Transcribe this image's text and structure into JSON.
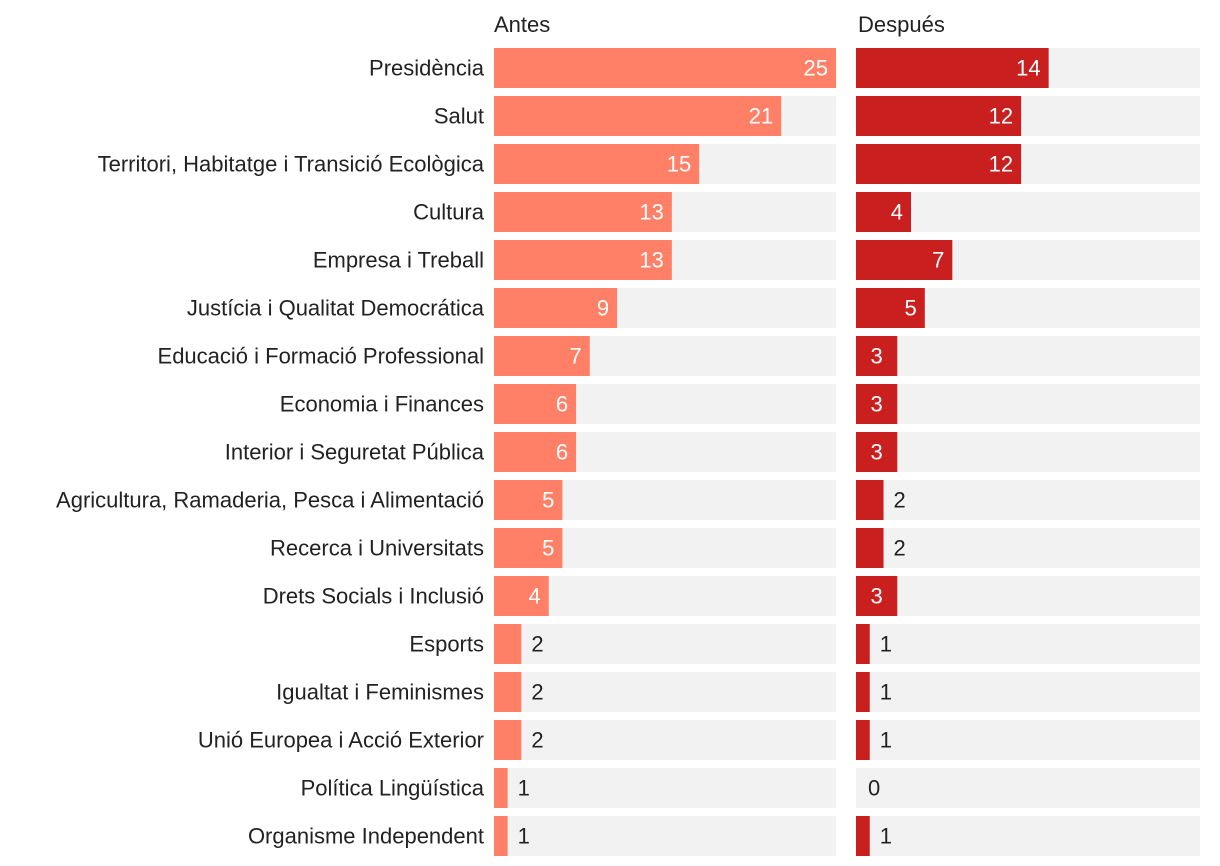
{
  "chart_data": {
    "type": "bar",
    "orientation": "horizontal",
    "categories": [
      "Presidència",
      "Salut",
      "Territori, Habitatge i Transició Ecològica",
      "Cultura",
      "Empresa i Treball",
      "Justícia i Qualitat Democrática",
      "Educació i Formació Professional",
      "Economia i Finances",
      "Interior i Seguretat Pública",
      "Agricultura, Ramaderia, Pesca i Alimentació",
      "Recerca i Universitats",
      "Drets Socials i Inclusió",
      "Esports",
      "Igualtat i Feminismes",
      "Unió Europea i Acció Exterior",
      "Política Lingüística",
      "Organisme Independent"
    ],
    "series": [
      {
        "name": "Antes",
        "color": "#ff8066",
        "values": [
          25,
          21,
          15,
          13,
          13,
          9,
          7,
          6,
          6,
          5,
          5,
          4,
          2,
          2,
          2,
          1,
          1
        ],
        "xlim": [
          0,
          25
        ]
      },
      {
        "name": "Después",
        "color": "#c91f1f",
        "values": [
          14,
          12,
          12,
          4,
          7,
          5,
          3,
          3,
          3,
          2,
          2,
          3,
          1,
          1,
          1,
          0,
          1
        ],
        "xlim": [
          0,
          25
        ]
      }
    ],
    "background_color": "#f2f2f2",
    "grid": false,
    "legend": "none"
  }
}
